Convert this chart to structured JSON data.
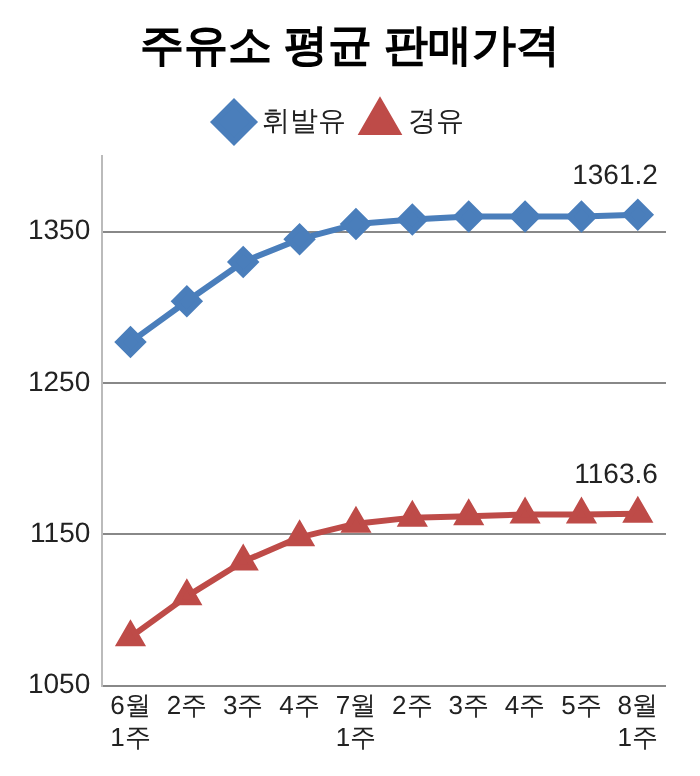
{
  "chart_data": {
    "type": "line",
    "title": "주유소 평균 판매가격",
    "categories": [
      "6월\n1주",
      "2주",
      "3주",
      "4주",
      "7월\n1주",
      "2주",
      "3주",
      "4주",
      "5주",
      "8월\n1주"
    ],
    "series": [
      {
        "name": "휘발유",
        "color": "#4a7ebb",
        "marker": "diamond",
        "values": [
          1277,
          1304,
          1330,
          1345,
          1355,
          1358,
          1360,
          1360,
          1360,
          1361.2
        ],
        "value_labels": [
          null,
          null,
          null,
          null,
          null,
          null,
          null,
          null,
          null,
          "1361.2"
        ]
      },
      {
        "name": "경유",
        "color": "#be4b48",
        "marker": "triangle",
        "values": [
          1082,
          1109,
          1132,
          1148,
          1157,
          1161,
          1162,
          1163,
          1163,
          1163.6
        ],
        "value_labels": [
          null,
          null,
          null,
          null,
          null,
          null,
          null,
          null,
          null,
          "1163.6"
        ]
      }
    ],
    "ylim": [
      1050,
      1400
    ],
    "yticks": [
      1050,
      1150,
      1250,
      1350
    ],
    "grid": "y",
    "legend": "top"
  }
}
